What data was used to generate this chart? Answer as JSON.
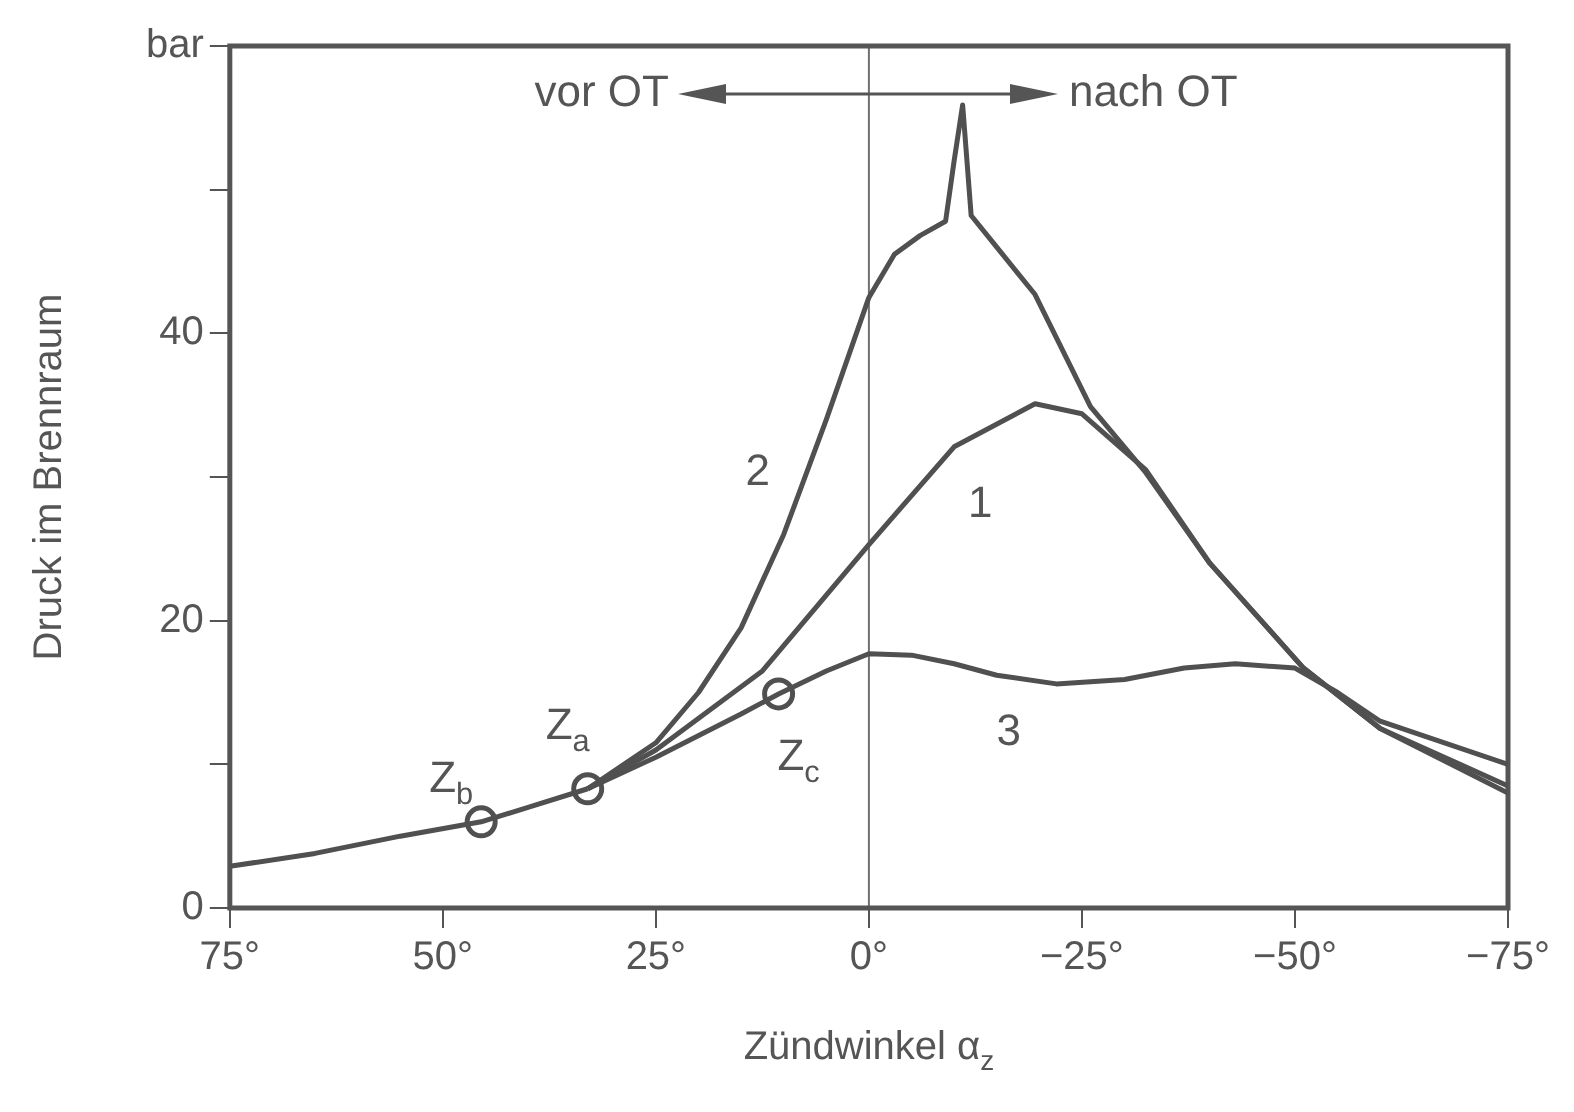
{
  "chart_data": {
    "type": "line",
    "xlabel": "Zündwinkel α$_{z}$",
    "ylabel": "Druck im Brennraum",
    "xlim": [
      75,
      -75
    ],
    "ylim": [
      0,
      60
    ],
    "xticks": [
      {
        "value": 75,
        "label": "75°"
      },
      {
        "value": 50,
        "label": "50°"
      },
      {
        "value": 25,
        "label": "25°"
      },
      {
        "value": 0,
        "label": "0°"
      },
      {
        "value": -25,
        "label": "−25°"
      },
      {
        "value": -50,
        "label": "−50°"
      },
      {
        "value": -75,
        "label": "−75°"
      }
    ],
    "yticks": [
      0,
      {
        "value": 10,
        "label": null
      },
      20,
      {
        "value": 30,
        "label": null
      },
      40,
      {
        "value": 50,
        "label": null
      },
      {
        "value": 60,
        "label": "bar"
      }
    ],
    "grid": false,
    "legend": false,
    "marker": "none",
    "line_style": "solid",
    "ref_lines": [
      {
        "axis": "x",
        "value": 0,
        "color": "#707070"
      }
    ],
    "series": [
      {
        "color": "#505050",
        "x": [
          75,
          65,
          55,
          45.5,
          40,
          33
        ],
        "values": [
          2.9,
          3.8,
          5,
          6,
          7,
          8.3
        ]
      },
      {
        "color": "#505050",
        "x": [
          33,
          25,
          12.5,
          0,
          -10,
          -19.5,
          -25,
          -32.5,
          -40,
          -51,
          -60,
          -75
        ],
        "values": [
          8.3,
          11,
          16.5,
          25.3,
          32.1,
          35.1,
          34.4,
          30.5,
          24,
          16.7,
          12.5,
          8.5
        ]
      },
      {
        "color": "#505050",
        "x": [
          33,
          25,
          20,
          15,
          10,
          5,
          0,
          -3,
          -6,
          -9,
          -10,
          -11,
          -12,
          -15,
          -19.5,
          -26,
          -32.5,
          -40,
          -51,
          -60,
          -75
        ],
        "values": [
          8.3,
          11.5,
          15,
          19.5,
          26,
          34,
          42.5,
          45.5,
          46.8,
          47.8,
          52,
          55.9,
          48.2,
          46,
          42.7,
          34.9,
          30.3,
          24,
          16.7,
          12.5,
          8
        ]
      },
      {
        "color": "#505050",
        "x": [
          33,
          25,
          15,
          10.6,
          5,
          0,
          -5,
          -10,
          -15,
          -22,
          -30,
          -37,
          -43,
          -50,
          -55,
          -60,
          -75
        ],
        "values": [
          8.3,
          10.5,
          13.5,
          14.9,
          16.5,
          17.7,
          17.6,
          17,
          16.2,
          15.6,
          15.9,
          16.7,
          17,
          16.7,
          15,
          13,
          10
        ]
      },
      {
        "type": "scatter",
        "marker": "circle",
        "color": "#505050",
        "x": [
          45.5,
          33,
          10.6
        ],
        "values": [
          6,
          8.3,
          14.9
        ]
      }
    ],
    "annotations": [
      "vor OT",
      "nach OT",
      {
        "text": "2",
        "x": 10,
        "y": 26
      },
      {
        "text": "1",
        "x": -10,
        "y": 32.1
      },
      {
        "text": "3",
        "x": -15,
        "y": 16.2
      },
      {
        "text": "Z$_{b}$",
        "x": 45.5,
        "y": 6
      },
      {
        "text": "Z$_{a}$",
        "x": 33,
        "y": 8.3
      },
      {
        "text": "Z$_{c}$",
        "x": 10.6,
        "y": 14.9
      }
    ]
  }
}
